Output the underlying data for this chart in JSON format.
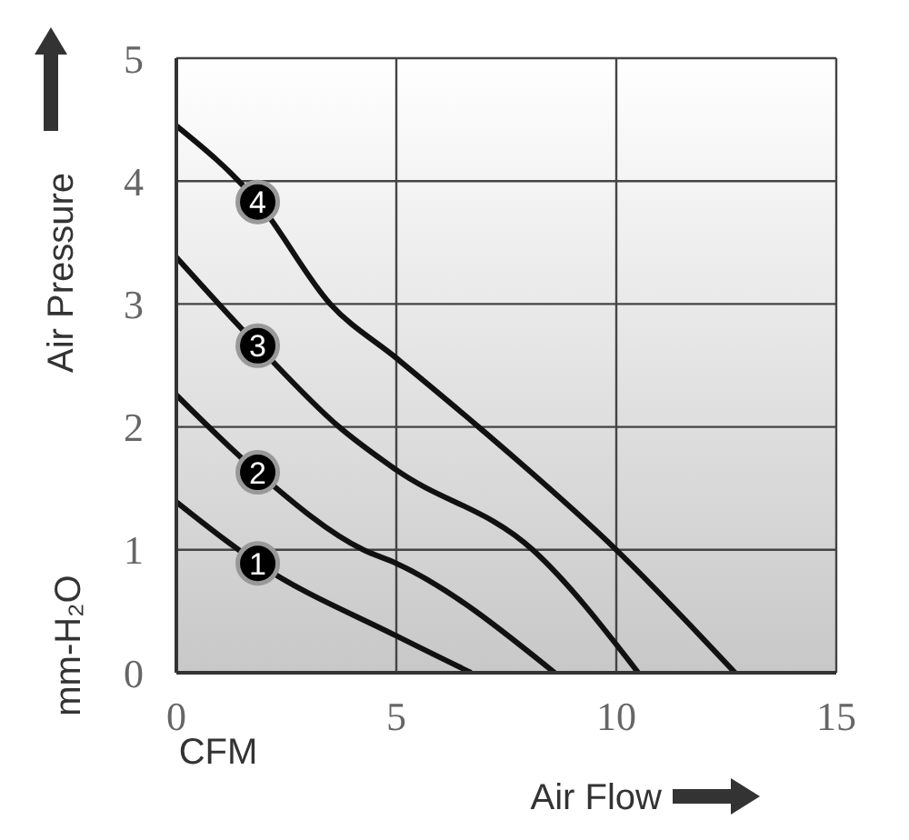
{
  "chart_data": {
    "type": "line",
    "xlabel": "Air Flow",
    "ylabel": "Air Pressure",
    "annotations": [
      "CFM",
      "mm-H₂O"
    ],
    "xlim": [
      0,
      15
    ],
    "xticks": [
      0,
      5,
      10,
      15
    ],
    "ylim": [
      0,
      5
    ],
    "yticks": [
      0,
      1,
      2,
      3,
      4,
      5
    ],
    "grid": true,
    "series": [
      {
        "name": "1",
        "color": "#111111",
        "x": [
          0,
          1.85,
          5,
          6.7
        ],
        "values": [
          1.39,
          0.89,
          0.3,
          0
        ]
      },
      {
        "name": "2",
        "color": "#111111",
        "x": [
          0,
          1.85,
          4.25,
          5,
          8.6
        ],
        "values": [
          2.26,
          1.63,
          1,
          0.89,
          0
        ]
      },
      {
        "name": "3",
        "color": "#111111",
        "x": [
          0,
          1.85,
          3.7,
          5,
          8.1,
          10.5
        ],
        "values": [
          3.38,
          2.66,
          2,
          1.65,
          1,
          0
        ]
      },
      {
        "name": "4",
        "color": "#111111",
        "x": [
          0,
          1.85,
          3.5,
          5,
          6.87,
          10,
          12.7
        ],
        "values": [
          4.45,
          3.83,
          3,
          2.56,
          2,
          1,
          0
        ]
      }
    ]
  }
}
